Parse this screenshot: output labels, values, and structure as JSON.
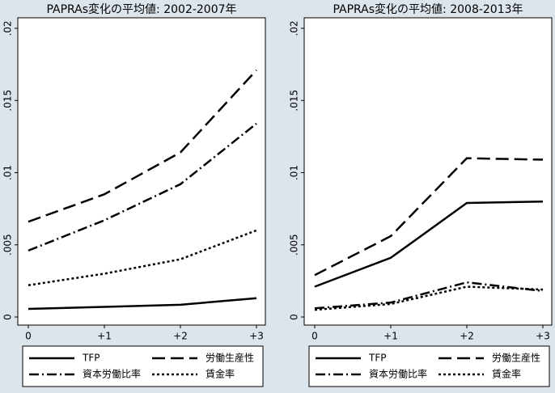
{
  "chart_data": [
    {
      "type": "line",
      "title": "PAPRAs変化の平均値:  2002-2007年",
      "categories": [
        "0",
        "+1",
        "+2",
        "+3"
      ],
      "ylim": [
        0,
        0.02
      ],
      "yticks": [
        0,
        {
          "value": 0.005,
          "label": ".005"
        },
        {
          "value": 0.01,
          "label": ".01"
        },
        {
          "value": 0.015,
          "label": ".015"
        },
        {
          "value": 0.02,
          "label": ".02"
        }
      ],
      "series": [
        {
          "name": "TFP",
          "color": "#000000",
          "dash": "solid",
          "values": [
            0.00056,
            0.0007,
            0.00085,
            0.0013
          ]
        },
        {
          "name": "労働生産性",
          "color": "#000000",
          "dash": "longdash",
          "values": [
            0.0066,
            0.0085,
            0.0114,
            0.0171
          ]
        },
        {
          "name": "資本労働比率",
          "color": "#000000",
          "dash": "dashdot",
          "values": [
            0.0046,
            0.0067,
            0.0092,
            0.0134
          ]
        },
        {
          "name": "賃金率",
          "color": "#000000",
          "dash": "dot",
          "values": [
            0.0022,
            0.003,
            0.004,
            0.006
          ]
        }
      ]
    },
    {
      "type": "line",
      "title": "PAPRAs変化の平均値:  2008-2013年",
      "categories": [
        "0",
        "+1",
        "+2",
        "+3"
      ],
      "ylim": [
        0,
        0.02
      ],
      "yticks": [
        0,
        {
          "value": 0.005,
          "label": ".005"
        },
        {
          "value": 0.01,
          "label": ".01"
        },
        {
          "value": 0.015,
          "label": ".015"
        },
        {
          "value": 0.02,
          "label": ".02"
        }
      ],
      "series": [
        {
          "name": "TFP",
          "color": "#000000",
          "dash": "solid",
          "values": [
            0.0021,
            0.0041,
            0.0079,
            0.008
          ]
        },
        {
          "name": "労働生産性",
          "color": "#000000",
          "dash": "longdash",
          "values": [
            0.0029,
            0.0056,
            0.011,
            0.0109
          ]
        },
        {
          "name": "資本労働比率",
          "color": "#000000",
          "dash": "dashdot",
          "values": [
            0.0006,
            0.001,
            0.0024,
            0.0018
          ]
        },
        {
          "name": "賃金率",
          "color": "#000000",
          "dash": "dot",
          "values": [
            0.0005,
            0.0009,
            0.0021,
            0.0019
          ]
        }
      ]
    }
  ]
}
